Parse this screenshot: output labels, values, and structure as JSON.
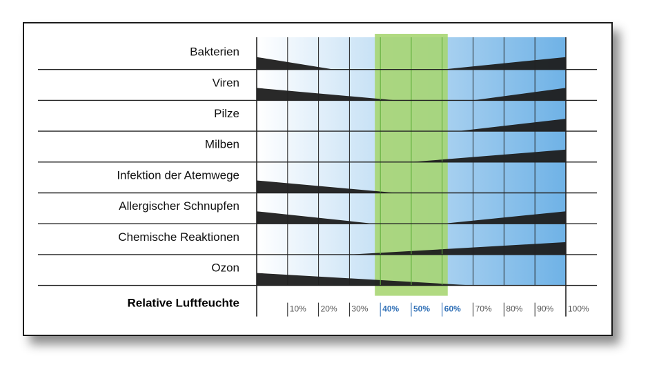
{
  "chart_data": {
    "type": "area",
    "title": "",
    "xlabel": "Relative Luftfeuchte",
    "ylabel": "",
    "xlim": [
      0,
      100
    ],
    "x_ticks": [
      "10%",
      "20%",
      "30%",
      "40%",
      "50%",
      "60%",
      "70%",
      "80%",
      "90%",
      "100%"
    ],
    "highlighted_ticks": [
      "40%",
      "50%",
      "60%"
    ],
    "optimal_range": [
      40,
      60
    ],
    "rows": [
      {
        "label": "Bakterien",
        "low": {
          "start": 0,
          "end": 25
        },
        "high": {
          "start": 60,
          "end": 100
        }
      },
      {
        "label": "Viren",
        "low": {
          "start": 0,
          "end": 45
        },
        "high": {
          "start": 70,
          "end": 100
        }
      },
      {
        "label": "Pilze",
        "low": null,
        "high": {
          "start": 65,
          "end": 100
        }
      },
      {
        "label": "Milben",
        "low": null,
        "high": {
          "start": 50,
          "end": 100
        }
      },
      {
        "label": "Infektion der Atemwege",
        "low": {
          "start": 0,
          "end": 45
        },
        "high": null
      },
      {
        "label": "Allergischer Schnupfen",
        "low": {
          "start": 0,
          "end": 38
        },
        "high": {
          "start": 60,
          "end": 100
        }
      },
      {
        "label": "Chemische Reaktionen",
        "low": null,
        "high": {
          "start": 30,
          "end": 100
        }
      },
      {
        "label": "Ozon",
        "low": {
          "start": 0,
          "end": 70
        },
        "high": null
      }
    ],
    "colors": {
      "gradient_light": "#ffffff",
      "gradient_dark": "#6fb2e6",
      "optimal_band": "#a6d56f",
      "wedge": "#1e1e1e",
      "grid": "#222222",
      "tick_normal": "#555555",
      "tick_highlight": "#2f6fb6"
    }
  }
}
